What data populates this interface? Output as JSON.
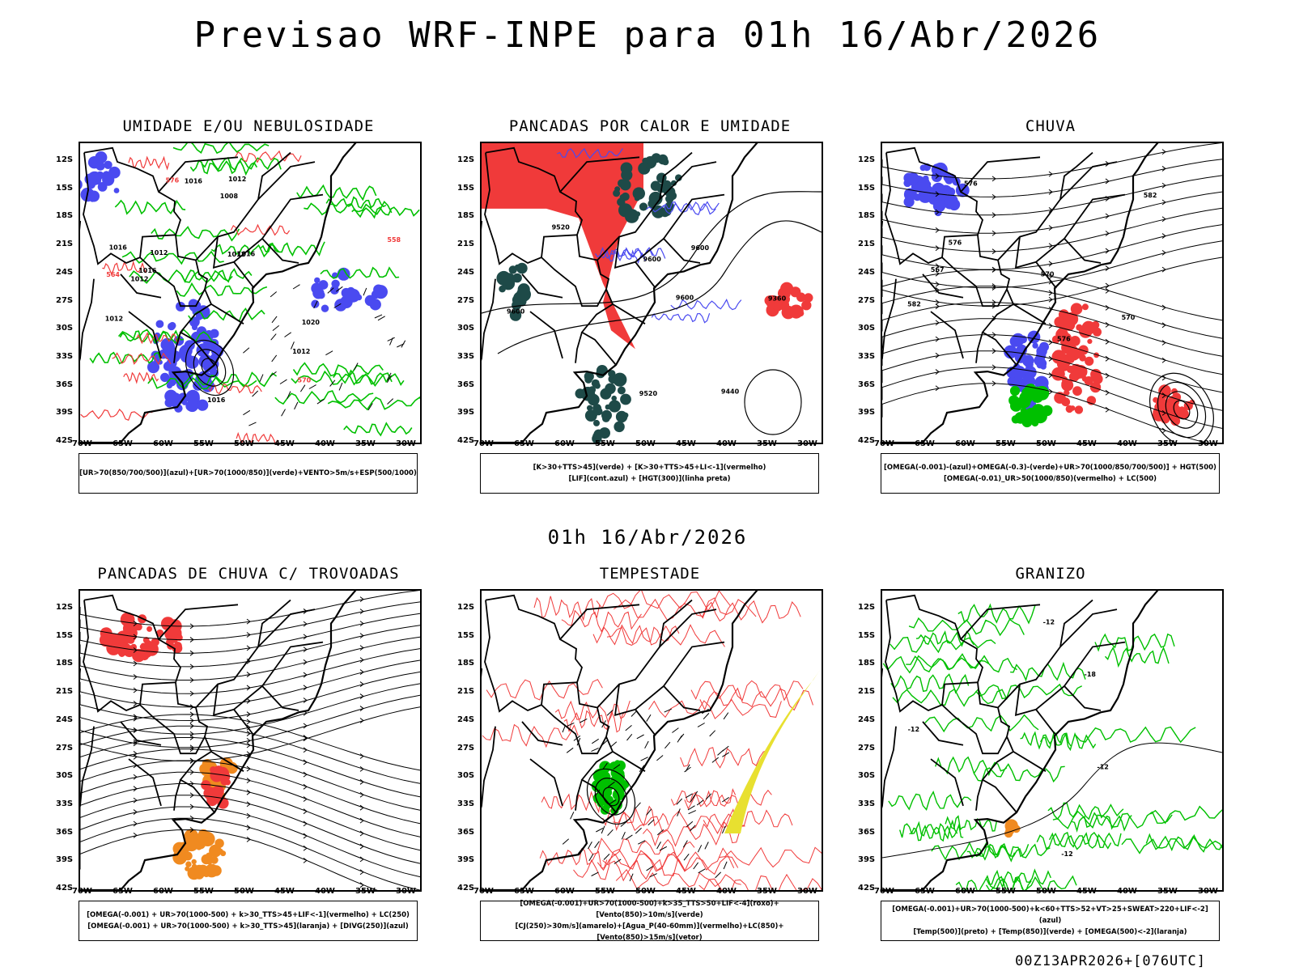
{
  "title": "Previsao WRF-INPE  para 01h 16/Abr/2026",
  "mid_stamp": "01h 16/Abr/2026",
  "run_stamp": "00Z13APR2026+[076UTC]",
  "lat_labels": [
    "12S",
    "15S",
    "18S",
    "21S",
    "24S",
    "27S",
    "30S",
    "33S",
    "36S",
    "39S",
    "42S"
  ],
  "lon_labels": [
    "70W",
    "65W",
    "60W",
    "55W",
    "50W",
    "45W",
    "40W",
    "35W",
    "30W"
  ],
  "colors": {
    "blue": "#4a4af0",
    "green": "#00c000",
    "red": "#f03a3a",
    "darkgreen": "#1e4a48",
    "orange": "#f08a20",
    "yellow": "#e8e030"
  },
  "panels": [
    {
      "title": "UMIDADE E/OU NEBULOSIDADE",
      "legend": [
        "[UR>70(850/700/500)](azul)+[UR>70(1000/850)](verde)+VENTO>5m/s+ESP(500/1000)"
      ],
      "labels": [
        "1012",
        "1012",
        "1016",
        "1012",
        "1016",
        "1012",
        "1016",
        "1012",
        "1016",
        "1008",
        "1012",
        "1016",
        "1020",
        "570",
        "576",
        "564",
        "558"
      ]
    },
    {
      "title": "PANCADAS POR CALOR E UMIDADE",
      "legend": [
        "[K>30+TTS>45](verde) + [K>30+TTS>45+LI<-1](vermelho)",
        "[LIF](cont.azul) + [HGT(300)](linha preta)"
      ],
      "labels": [
        "9600",
        "9600",
        "9600",
        "9600",
        "9520",
        "9440",
        "9520",
        "9360"
      ]
    },
    {
      "title": "CHUVA",
      "legend": [
        "[OMEGA(-0.001)-(azul)+OMEGA(-0.3)-(verde)+UR>70(1000/850/700/500)] + HGT(500)",
        "[OMEGA(-0.01)_UR>50(1000/850)(vermelho) + LC(500)"
      ],
      "labels": [
        "582",
        "576",
        "582",
        "576",
        "570",
        "567",
        "576",
        "570"
      ]
    },
    {
      "title": "PANCADAS DE CHUVA C/ TROVOADAS",
      "legend": [
        "[OMEGA(-0.001) + UR>70(1000-500) + k>30_TTS>45+LIF<-1](vermelho) + LC(250)",
        "[OMEGA(-0.001) + UR>70(1000-500) + k>30_TTS>45](laranja) + [DIVG(250)](azul)"
      ],
      "labels": []
    },
    {
      "title": "TEMPESTADE",
      "legend": [
        "[OMEGA(-0.001)+UR>70(1000-500)+k>35_TTS>50+LIF<-4](roxo)+[Vento(850)>10m/s](verde)",
        "[CJ(250)>30m/s](amarelo)+[Agua_P(40-60mm)](vermelho)+LC(850)+[Vento(850)>15m/s](vetor)"
      ],
      "labels": []
    },
    {
      "title": "GRANIZO",
      "legend": [
        "[OMEGA(-0.001)+UR>70(1000-500)+k<60+TTS>52+VT>25+SWEAT>220+LIF<-2](azul)",
        "[Temp(500)](preto) + [Temp(850)](verde) + [OMEGA(500)<-2](laranja)"
      ],
      "labels": [
        "-12",
        "-12",
        "-12",
        "-18",
        "-12"
      ]
    }
  ]
}
